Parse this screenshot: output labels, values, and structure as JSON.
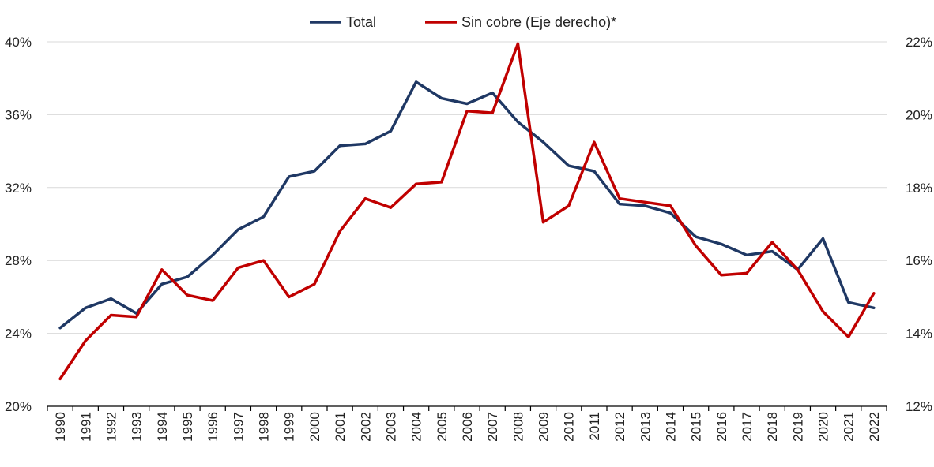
{
  "chart_data": {
    "type": "line",
    "title": "",
    "xlabel": "",
    "ylabel": "",
    "x": [
      "1990",
      "1991",
      "1992",
      "1993",
      "1994",
      "1995",
      "1996",
      "1997",
      "1998",
      "1999",
      "2000",
      "2001",
      "2002",
      "2003",
      "2004",
      "2005",
      "2006",
      "2007",
      "2008",
      "2009",
      "2010",
      "2011",
      "2012",
      "2013",
      "2014",
      "2015",
      "2016",
      "2017",
      "2018",
      "2019",
      "2020",
      "2021",
      "2022"
    ],
    "y_left": {
      "range": [
        20,
        40
      ],
      "ticks": [
        20,
        24,
        28,
        32,
        36,
        40
      ],
      "tick_labels": [
        "20%",
        "24%",
        "28%",
        "32%",
        "36%",
        "40%"
      ]
    },
    "y_right": {
      "range": [
        12,
        22
      ],
      "ticks": [
        12,
        14,
        16,
        18,
        20,
        22
      ],
      "tick_labels": [
        "12%",
        "14%",
        "16%",
        "18%",
        "20%",
        "22%"
      ]
    },
    "grid": true,
    "legend_position": "top-center",
    "series": [
      {
        "name": "Total",
        "axis": "left",
        "color": "#1f3864",
        "values": [
          24.3,
          25.4,
          25.9,
          25.1,
          26.7,
          27.1,
          28.3,
          29.7,
          30.4,
          32.6,
          32.9,
          34.3,
          34.4,
          35.1,
          37.8,
          36.9,
          36.6,
          37.2,
          35.6,
          34.5,
          33.2,
          32.9,
          31.1,
          31.0,
          30.6,
          29.3,
          28.9,
          28.3,
          28.5,
          27.5,
          29.2,
          25.7,
          25.4
        ]
      },
      {
        "name": "Sin cobre (Eje derecho)*",
        "axis": "right",
        "color": "#c00000",
        "values": [
          12.75,
          13.8,
          14.5,
          14.45,
          15.75,
          15.05,
          14.9,
          15.8,
          16.0,
          15.0,
          15.35,
          16.8,
          17.7,
          17.45,
          18.1,
          18.15,
          20.1,
          20.05,
          21.95,
          17.05,
          17.5,
          19.25,
          17.7,
          17.6,
          17.5,
          16.4,
          15.6,
          15.65,
          16.5,
          15.75,
          14.6,
          13.9,
          15.1
        ]
      }
    ]
  }
}
